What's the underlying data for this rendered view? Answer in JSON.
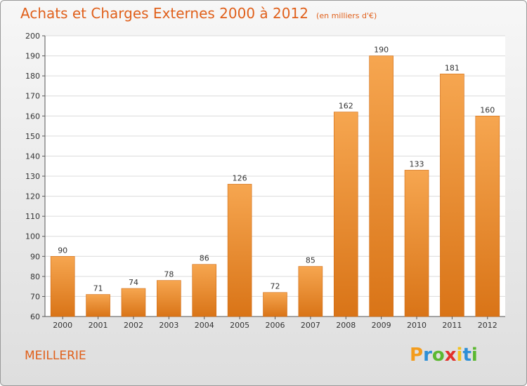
{
  "title": "Achats et Charges Externes 2000 à 2012",
  "unit": "(en milliers d'€)",
  "commune": "MEILLERIE",
  "brand": {
    "letters": [
      "P",
      "r",
      "o",
      "x",
      "i",
      "t",
      "i"
    ],
    "colors": [
      "#f39c1c",
      "#2d8fd6",
      "#5bb831",
      "#e2312b",
      "#f3c21c",
      "#2d8fd6",
      "#5bb831"
    ]
  },
  "colors": {
    "bar_light": "#f6a650",
    "bar_dark": "#d97417",
    "title": "#e0601b"
  },
  "chart_data": {
    "type": "bar",
    "categories": [
      "2000",
      "2001",
      "2002",
      "2003",
      "2004",
      "2005",
      "2006",
      "2007",
      "2008",
      "2009",
      "2010",
      "2011",
      "2012"
    ],
    "values": [
      90,
      71,
      74,
      78,
      86,
      126,
      72,
      85,
      162,
      190,
      133,
      181,
      160
    ],
    "ylim": [
      60,
      200
    ],
    "yticks": [
      60,
      70,
      80,
      90,
      100,
      110,
      120,
      130,
      140,
      150,
      160,
      170,
      180,
      190,
      200
    ],
    "grid": true
  }
}
